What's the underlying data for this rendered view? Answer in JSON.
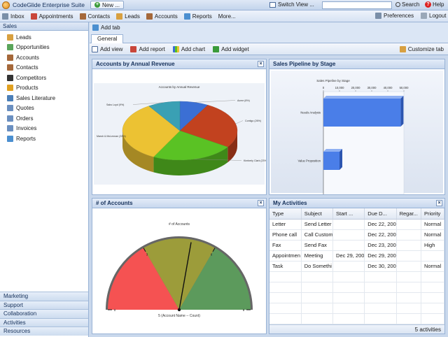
{
  "app": {
    "title": "CodeGlide Enterprise Suite",
    "new_label": "New ...",
    "switch_view": "Switch View ...",
    "search_label": "Search",
    "help_label": "Help",
    "search_value": ""
  },
  "nav": {
    "items": [
      {
        "label": "Inbox",
        "icon": "inbox-icon",
        "color": "#7a8fa8"
      },
      {
        "label": "Appointments",
        "icon": "calendar-icon",
        "color": "#c9463a"
      },
      {
        "label": "Contacts",
        "icon": "contacts-book-icon",
        "color": "#a5683a"
      },
      {
        "label": "Leads",
        "icon": "leads-icon",
        "color": "#d8a040"
      },
      {
        "label": "Accounts",
        "icon": "accounts-icon",
        "color": "#a5683a"
      },
      {
        "label": "Reports",
        "icon": "reports-icon",
        "color": "#4b8fd0"
      },
      {
        "label": "More...",
        "icon": "",
        "color": ""
      }
    ],
    "preferences": "Preferences",
    "logout": "Logout"
  },
  "sidebar": {
    "title": "Sales",
    "items": [
      {
        "label": "Leads",
        "icon": "leads-icon",
        "color": "#d8a040"
      },
      {
        "label": "Opportunities",
        "icon": "money-icon",
        "color": "#5aa55a"
      },
      {
        "label": "Accounts",
        "icon": "accounts-icon",
        "color": "#a5683a"
      },
      {
        "label": "Contacts",
        "icon": "contacts-book-icon",
        "color": "#a5683a"
      },
      {
        "label": "Competitors",
        "icon": "competitor-icon",
        "color": "#333333"
      },
      {
        "label": "Products",
        "icon": "products-icon",
        "color": "#e0a020"
      },
      {
        "label": "Sales Literature",
        "icon": "literature-icon",
        "color": "#4b7fb8"
      },
      {
        "label": "Quotes",
        "icon": "quotes-icon",
        "color": "#6a8fc0"
      },
      {
        "label": "Orders",
        "icon": "orders-icon",
        "color": "#6a8fc0"
      },
      {
        "label": "Invoices",
        "icon": "invoices-icon",
        "color": "#6a8fc0"
      },
      {
        "label": "Reports",
        "icon": "reports-icon",
        "color": "#4b8fd0"
      }
    ],
    "bottom": [
      "Marketing",
      "Support",
      "Collaboration",
      "Activities",
      "Resources"
    ]
  },
  "tabs": {
    "add_tab": "Add tab",
    "active": "General"
  },
  "toolbar": {
    "add_view": "Add view",
    "add_report": "Add report",
    "add_chart": "Add chart",
    "add_widget": "Add widget",
    "customize": "Customize tab"
  },
  "panels": {
    "revenue": {
      "title": "Accounts by Annual Revenue",
      "chart_title": "Accounts by Annual Revenue",
      "chart_data": {
        "type": "pie",
        "title": "Accounts by Annual Revenue",
        "slices": [
          {
            "label": "Acme (8%)",
            "value": 8,
            "color": "#3b6fd4"
          },
          {
            "label": "Contigo (26%)",
            "value": 26,
            "color": "#c2421f"
          },
          {
            "label": "Kimberly Clark (23%)",
            "value": 23,
            "color": "#5ac224"
          },
          {
            "label": "Marsh & McLennan (33%)",
            "value": 33,
            "color": "#ecc233"
          },
          {
            "label": "Saks Loyd (9%)",
            "value": 9,
            "color": "#3aa0b4"
          }
        ]
      }
    },
    "pipeline": {
      "title": "Sales Pipeline by Stage",
      "chart_title": "Sales Pipeline by Stage",
      "chart_data": {
        "type": "bar",
        "orientation": "horizontal",
        "title": "Sales Pipeline by Stage",
        "categories": [
          "Needs Analysis",
          "Value Proposition"
        ],
        "values": [
          48000,
          10000
        ],
        "xlim": [
          0,
          50000
        ],
        "ticks": [
          "0",
          "10,000",
          "20,000",
          "30,000",
          "40,000",
          "50,000"
        ],
        "color": "#4a7ee8"
      }
    },
    "accounts": {
      "title": "# of Accounts",
      "chart_title": "# of Accounts",
      "caption": "5 (Account Name -- Count)",
      "chart_data": {
        "type": "gauge",
        "value": 5,
        "min": 0,
        "max": 9,
        "band_ticks": [
          "0",
          "3",
          "6",
          "9"
        ],
        "bands": [
          {
            "from": 0,
            "to": 3,
            "color": "#f55252"
          },
          {
            "from": 3,
            "to": 6,
            "color": "#9c9c3a"
          },
          {
            "from": 6,
            "to": 9,
            "color": "#5c9a5c"
          }
        ]
      }
    },
    "activities": {
      "title": "My Activities",
      "columns": [
        "Type",
        "Subject",
        "Start ...",
        "Due D...",
        "Regar...",
        "Priority"
      ],
      "rows": [
        [
          "Letter",
          "Send Letter",
          "",
          "Dec 22, 200",
          "",
          "Normal"
        ],
        [
          "Phone call",
          "Call Custom",
          "",
          "Dec 22, 200",
          "",
          "Normal"
        ],
        [
          "Fax",
          "Send Fax",
          "",
          "Dec 23, 200",
          "",
          "High"
        ],
        [
          "Appointmen",
          "Meeting",
          "Dec 29, 200",
          "Dec 29, 200",
          "",
          ""
        ],
        [
          "Task",
          "Do Somethi",
          "",
          "Dec 30, 200",
          "",
          "Normal"
        ]
      ],
      "footer": "5 activities"
    }
  }
}
